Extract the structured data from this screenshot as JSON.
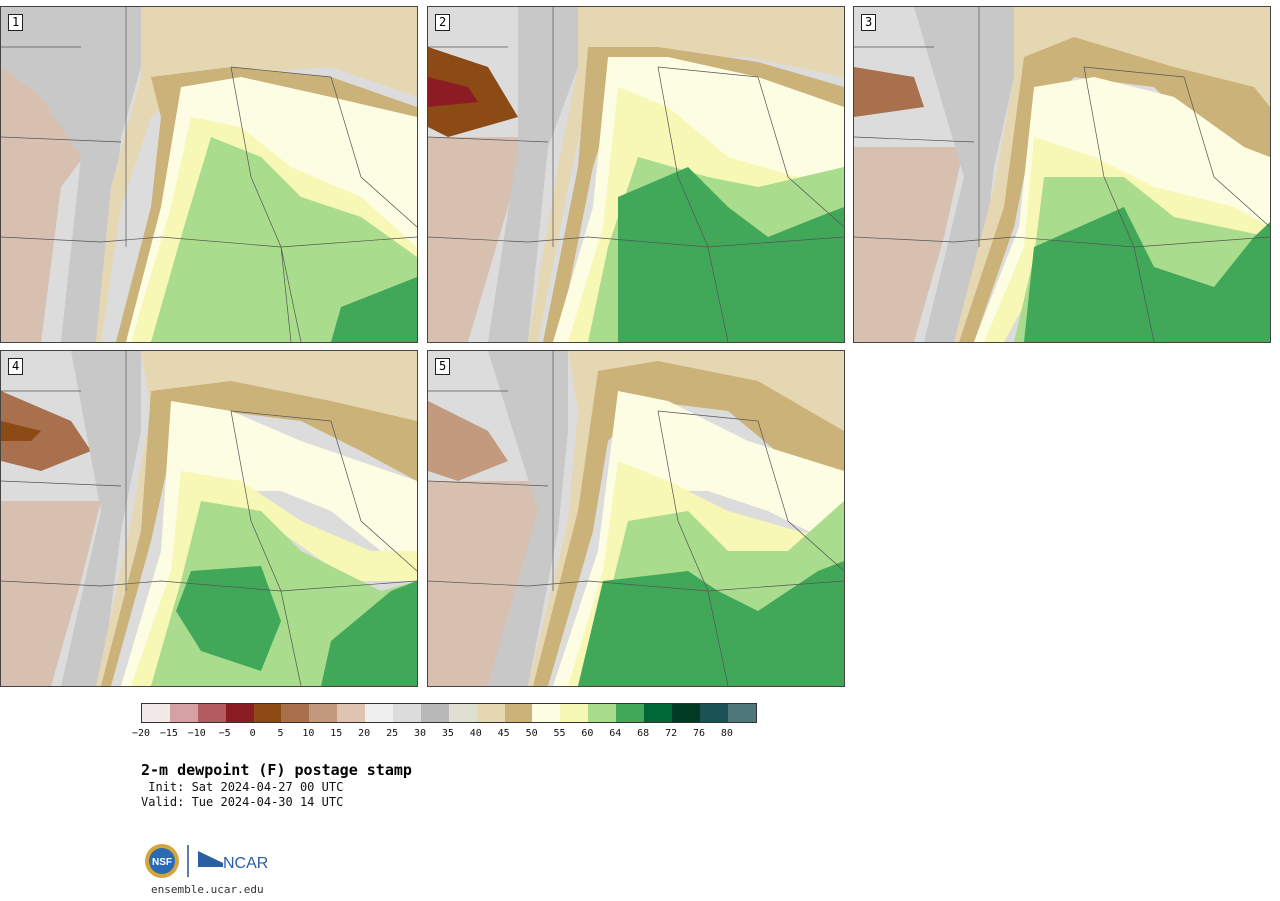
{
  "panels": [
    {
      "label": "1"
    },
    {
      "label": "2"
    },
    {
      "label": "3"
    },
    {
      "label": "4"
    },
    {
      "label": "5"
    }
  ],
  "colorbar": {
    "colors": [
      "#f2e9e9",
      "#d6a1a4",
      "#b55c62",
      "#8c1c24",
      "#8c4a14",
      "#a8704c",
      "#c39a7e",
      "#e0c3b1",
      "#f0f0f0",
      "#dcdcdc",
      "#b9b9b9",
      "#e0e0d2",
      "#e6d7b3",
      "#cbb279",
      "#fdfde3",
      "#f7f8b5",
      "#a9dc8c",
      "#41a85a",
      "#006837",
      "#003a25",
      "#1a5256",
      "#4f787c"
    ],
    "ticks": [
      "−20",
      "−15",
      "−10",
      "−5",
      "0",
      "5",
      "10",
      "15",
      "20",
      "25",
      "30",
      "35",
      "40",
      "45",
      "50",
      "55",
      "60",
      "64",
      "68",
      "72",
      "76",
      "80"
    ]
  },
  "title": "2-m dewpoint (F) postage stamp",
  "init": " Init: Sat 2024-04-27 00 UTC",
  "valid": "Valid: Tue 2024-04-30 14 UTC",
  "logos": {
    "nsf": "NSF",
    "ncar": "NCAR"
  },
  "site": "ensemble.ucar.edu"
}
